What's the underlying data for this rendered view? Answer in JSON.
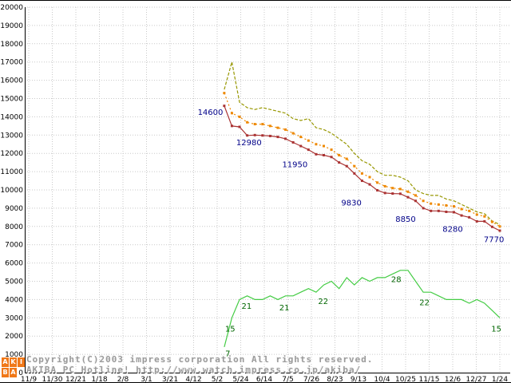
{
  "chart_data": {
    "type": "line",
    "title": "",
    "ylim": [
      0,
      20000
    ],
    "y_tick_interval": 1000,
    "grid": true,
    "x_tick_labels": [
      "11/9",
      "11/30",
      "12/21",
      "1/18",
      "2/8",
      "3/1",
      "3/21",
      "4/12",
      "5/2",
      "5/24",
      "6/14",
      "7/5",
      "7/26",
      "8/23",
      "9/13",
      "10/4",
      "10/25",
      "11/15",
      "12/6",
      "12/27",
      "1/24"
    ],
    "x_start": 8.3,
    "x_step": 0.325,
    "series": [
      {
        "name": "highest-price",
        "color": "#979700",
        "dash": "4,2",
        "markers": false,
        "values": [
          15500,
          17000,
          14800,
          14500,
          14400,
          14500,
          14400,
          14300,
          14200,
          13900,
          13800,
          13900,
          13400,
          13300,
          13100,
          12800,
          12500,
          12000,
          11600,
          11400,
          11000,
          10800,
          10800,
          10700,
          10500,
          10000,
          9800,
          9700,
          9700,
          9500,
          9400,
          9200,
          9000,
          8800,
          8700,
          8300,
          8100
        ]
      },
      {
        "name": "average-price",
        "color": "#ee8800",
        "dash": "2,3",
        "markers": true,
        "values": [
          15300,
          14200,
          14000,
          13700,
          13600,
          13600,
          13500,
          13400,
          13300,
          13100,
          12900,
          12700,
          12500,
          12400,
          12200,
          11900,
          11700,
          11300,
          10900,
          10700,
          10400,
          10200,
          10100,
          10050,
          9900,
          9700,
          9400,
          9250,
          9200,
          9150,
          9100,
          8950,
          8850,
          8650,
          8550,
          8250,
          8000
        ]
      },
      {
        "name": "lowest-price",
        "color": "#aa3333",
        "dash": "",
        "markers": true,
        "values": [
          14600,
          13500,
          13450,
          12980,
          13000,
          12980,
          12950,
          12900,
          12800,
          12600,
          12400,
          12200,
          11950,
          11900,
          11800,
          11500,
          11300,
          10900,
          10500,
          10300,
          9980,
          9830,
          9800,
          9790,
          9600,
          9400,
          9000,
          8850,
          8850,
          8800,
          8780,
          8600,
          8500,
          8280,
          8280,
          7980,
          7770
        ]
      },
      {
        "name": "shop-count",
        "color": "#44cc44",
        "dash": "",
        "markers": false,
        "value_scale": 200,
        "counts": [
          7,
          15,
          20,
          21,
          20,
          20,
          21,
          20,
          21,
          21,
          22,
          23,
          22,
          24,
          25,
          23,
          26,
          24,
          26,
          25,
          26,
          26,
          27,
          28,
          28,
          25,
          22,
          22,
          21,
          20,
          20,
          20,
          19,
          20,
          19,
          17,
          15
        ]
      }
    ],
    "point_labels": [
      {
        "text": "14600",
        "x": 8.25,
        "y": 14100,
        "color": "#000088",
        "anchor": "end"
      },
      {
        "text": "12980",
        "x": 9.35,
        "y": 12450,
        "color": "#000088",
        "anchor": "middle"
      },
      {
        "text": "11950",
        "x": 11.3,
        "y": 11250,
        "color": "#000088",
        "anchor": "middle"
      },
      {
        "text": "9830",
        "x": 13.7,
        "y": 9150,
        "color": "#000088",
        "anchor": "middle"
      },
      {
        "text": "8850",
        "x": 16.0,
        "y": 8250,
        "color": "#000088",
        "anchor": "middle"
      },
      {
        "text": "8280",
        "x": 18.0,
        "y": 7700,
        "color": "#000088",
        "anchor": "middle"
      },
      {
        "text": "7770",
        "x": 19.75,
        "y": 7150,
        "color": "#000088",
        "anchor": "middle"
      },
      {
        "text": "7",
        "x": 8.45,
        "y": 900,
        "color": "#006600",
        "anchor": "middle"
      },
      {
        "text": "15",
        "x": 8.55,
        "y": 2250,
        "color": "#006600",
        "anchor": "middle"
      },
      {
        "text": "21",
        "x": 9.25,
        "y": 3500,
        "color": "#006600",
        "anchor": "middle"
      },
      {
        "text": "21",
        "x": 10.85,
        "y": 3400,
        "color": "#006600",
        "anchor": "middle"
      },
      {
        "text": "22",
        "x": 12.5,
        "y": 3750,
        "color": "#006600",
        "anchor": "middle"
      },
      {
        "text": "28",
        "x": 15.6,
        "y": 4950,
        "color": "#006600",
        "anchor": "middle"
      },
      {
        "text": "22",
        "x": 16.8,
        "y": 3700,
        "color": "#006600",
        "anchor": "middle"
      },
      {
        "text": "15",
        "x": 19.85,
        "y": 2250,
        "color": "#006600",
        "anchor": "middle"
      }
    ]
  },
  "footer": {
    "copyright_line1": "Copyright(C)2003 impress corporation All rights reserved.",
    "copyright_line2": "AKIBA PC Hotline! http://www.watch.impress.co.jp/akiba/",
    "logo_letters": [
      "A",
      "K",
      "I",
      "B",
      "A"
    ]
  }
}
